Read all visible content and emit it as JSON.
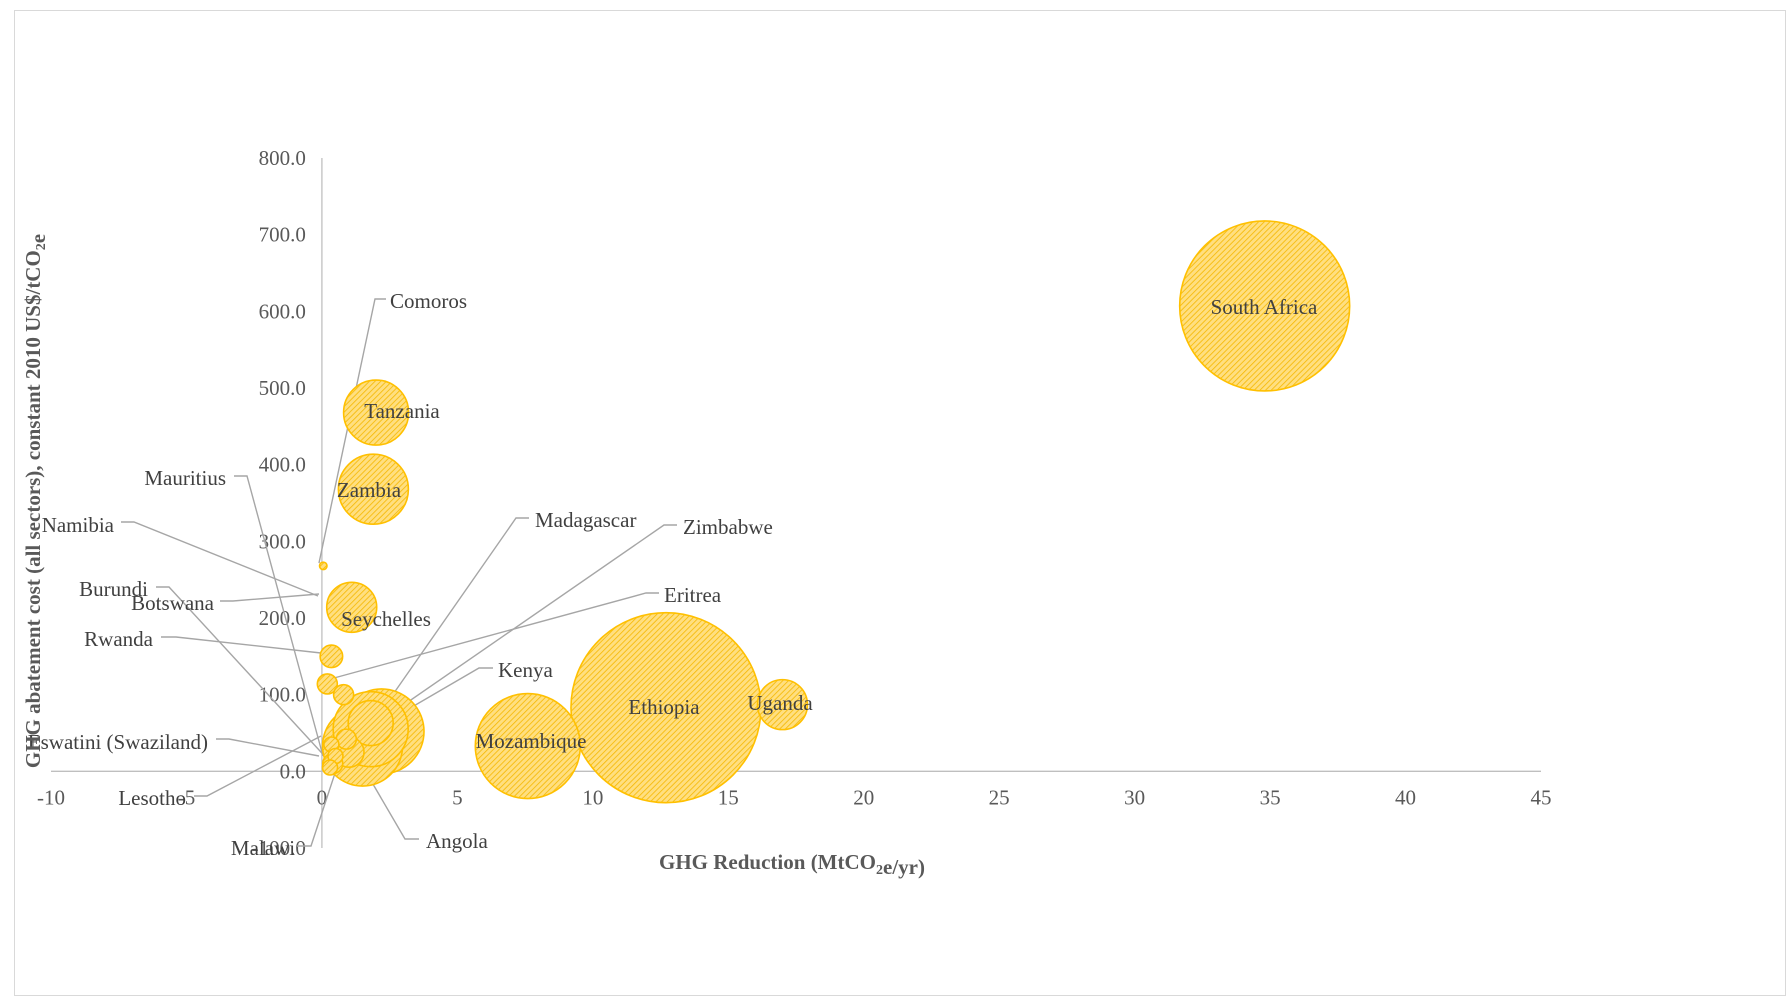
{
  "chart_data": {
    "type": "bubble",
    "xlabel": "GHG Reduction (MtCO2e/yr)",
    "ylabel": "GHG abatement cost (all sectors), constant 2010 US$/tCO2e",
    "xlim": [
      -10,
      45
    ],
    "ylim": [
      -100,
      800
    ],
    "x_ticks": [
      "-10",
      "-5",
      "0",
      "5",
      "10",
      "15",
      "20",
      "25",
      "30",
      "35",
      "40",
      "45"
    ],
    "y_ticks": [
      "-100.0",
      "0.0",
      "100.0",
      "200.0",
      "300.0",
      "400.0",
      "500.0",
      "600.0",
      "700.0",
      "800.0"
    ],
    "grid": false,
    "legend": "none",
    "bubble_color": "#FFC000",
    "series": [
      {
        "name": "South Africa",
        "x": 34.8,
        "y": 607,
        "size": 34
      },
      {
        "name": "Ethiopia",
        "x": 12.7,
        "y": 83,
        "size": 38
      },
      {
        "name": "Mozambique",
        "x": 7.6,
        "y": 33,
        "size": 21
      },
      {
        "name": "Uganda",
        "x": 17.0,
        "y": 87,
        "size": 10
      },
      {
        "name": "Tanzania",
        "x": 2.0,
        "y": 468,
        "size": 13
      },
      {
        "name": "Zambia",
        "x": 1.9,
        "y": 368,
        "size": 14
      },
      {
        "name": "Seychelles",
        "x": 1.1,
        "y": 214,
        "size": 10
      },
      {
        "name": "Comoros",
        "x": 0.05,
        "y": 268,
        "size": 1.5
      },
      {
        "name": "Rwanda",
        "x": 0.35,
        "y": 150,
        "size": 4.5
      },
      {
        "name": "Eritrea",
        "x": 0.2,
        "y": 114,
        "size": 4
      },
      {
        "name": "Kenya",
        "x": 1.8,
        "y": 55,
        "size": 15
      },
      {
        "name": "Zimbabwe",
        "x": 2.2,
        "y": 52,
        "size": 17
      },
      {
        "name": "Madagascar",
        "x": 1.8,
        "y": 63,
        "size": 9
      },
      {
        "name": "Angola",
        "x": 1.5,
        "y": 33,
        "size": 16
      },
      {
        "name": "Malawi",
        "x": 1.0,
        "y": 25,
        "size": 6
      },
      {
        "name": "Eswatini (Swaziland)",
        "x": 0.4,
        "y": 10,
        "size": 4
      },
      {
        "name": "Lesotho",
        "x": 0.35,
        "y": 35,
        "size": 3
      },
      {
        "name": "Namibia",
        "x": 0.8,
        "y": 100,
        "size": 4
      },
      {
        "name": "Botswana",
        "x": 0.9,
        "y": 42,
        "size": 4
      },
      {
        "name": "Mauritius",
        "x": 0.5,
        "y": 20,
        "size": 3
      },
      {
        "name": "Burundi",
        "x": 0.3,
        "y": 5,
        "size": 3
      }
    ]
  }
}
